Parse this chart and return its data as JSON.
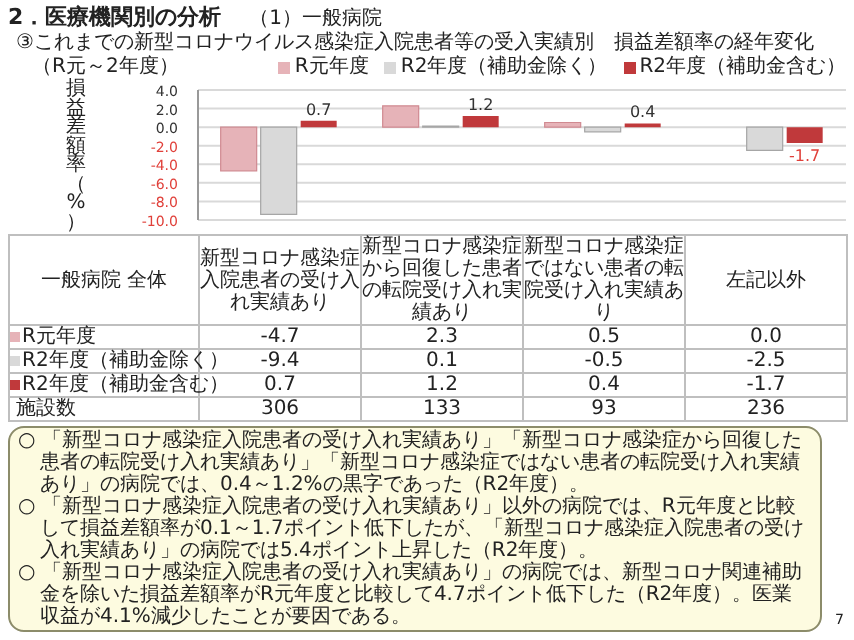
{
  "chart_data": {
    "type": "bar",
    "title": "③これまでの新型コロナウイルス感染症入院患者等の受入実績別　損益差額率の経年変化",
    "subtitle": "（R元～2年度）",
    "ylabel": "損益差額率（%）",
    "categories": [
      "新型コロナ感染症入院患者の受け入れ実績あり",
      "新型コロナ感染症から回復した患者の転院受け入れ実績あり",
      "新型コロナ感染症ではない患者の転院受け入れ実績あり",
      "左記以外"
    ],
    "series": [
      {
        "name": "R元年度",
        "color": "#e6b3b8",
        "values": [
          -4.7,
          2.3,
          0.5,
          0.0
        ],
        "value_labels": [
          "-4.7",
          "2.3",
          "0.5",
          "0.0"
        ]
      },
      {
        "name": "R2年度（補助金除く）",
        "color": "#d9d9d9",
        "values": [
          -9.4,
          0.1,
          -0.5,
          -2.5
        ],
        "value_labels": [
          "-9.4",
          "0.1",
          "-0.5",
          "-2.5"
        ]
      },
      {
        "name": "R2年度（補助金含む）",
        "color": "#c0393b",
        "values": [
          0.7,
          1.2,
          0.4,
          -1.7
        ],
        "value_labels": [
          "0.7",
          "1.2",
          "0.4",
          "-1.7"
        ]
      }
    ],
    "ylim": [
      -10,
      4
    ],
    "yticks": [
      {
        "value": 4,
        "label": "4.0"
      },
      {
        "value": 2,
        "label": "2.0"
      },
      {
        "value": 0,
        "label": "0.0"
      },
      {
        "value": -2,
        "label": "-2.0"
      },
      {
        "value": -4,
        "label": "-4.0"
      },
      {
        "value": -6,
        "label": "-6.0"
      },
      {
        "value": -8,
        "label": "-8.0"
      },
      {
        "value": -10,
        "label": "-10.0"
      }
    ],
    "grid": "y",
    "legend": "top right",
    "annotations": [
      "2．医療機関別の分析",
      "（1）一般病院",
      "一般病院 全体",
      "施設数",
      "306",
      "133",
      "93",
      "236",
      "○ 「新型コロナ感染症入院患者の受け入れ実績あり」「新型コロナ感染症から回復した患者の転院受け入れ実績あり」「新型コロナ感染症ではない患者の転院受け入れ実績あり」の病院では、0.4～1.2%の黒字であった（R2年度）。",
      "○ 「新型コロナ感染症入院患者の受け入れ実績あり」以外の病院では、R元年度と比較して損益差額率が0.1～1.7ポイント低下したが、「新型コロナ感染症入院患者の受け入れ実績あり」の病院では5.4ポイント上昇した（R2年度）。",
      "○ 「新型コロナ感染症入院患者の受け入れ実績あり」の病院では、新型コロナ関連補助金を除いた損益差額率がR元年度と比較して4.7ポイント低下した（R2年度）。医業収益が4.1%減少したことが要因である。",
      "7"
    ]
  }
}
